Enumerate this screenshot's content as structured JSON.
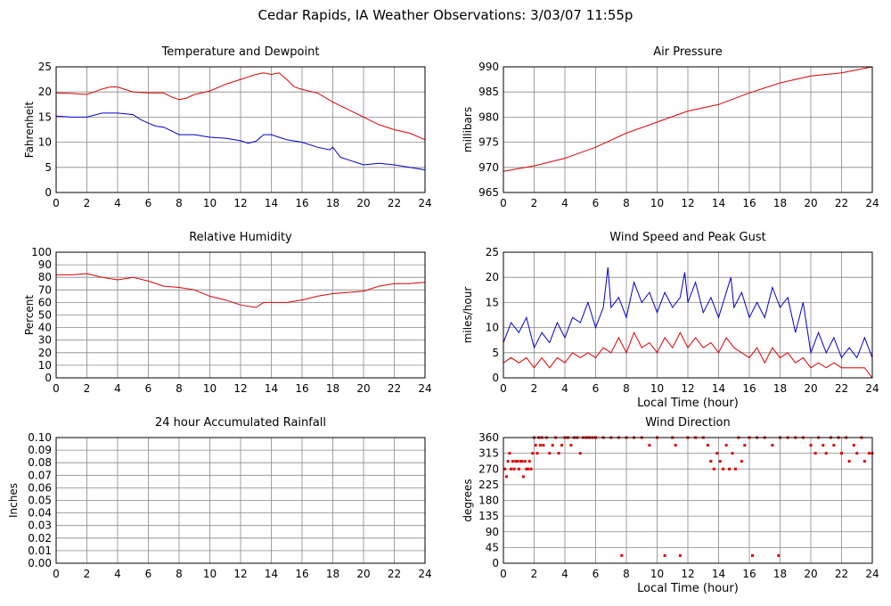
{
  "page": {
    "title": "Cedar Rapids, IA Weather Observations: 3/03/07 11:55p",
    "colors": {
      "red": "#dd0000",
      "blue": "#0000cc",
      "grid": "#888888"
    }
  },
  "chart_data": [
    {
      "id": "temp",
      "type": "line",
      "title": "Temperature and Dewpoint",
      "xlabel": "",
      "ylabel": "Fahrenheit",
      "xlim": [
        0,
        24
      ],
      "ylim": [
        0,
        25
      ],
      "xticks": [
        0,
        2,
        4,
        6,
        8,
        10,
        12,
        14,
        16,
        18,
        20,
        22,
        24
      ],
      "yticks": [
        0,
        5,
        10,
        15,
        20,
        25
      ],
      "grid": true,
      "series": [
        {
          "color": "#dd0000",
          "x": [
            0,
            1,
            2,
            3,
            3.5,
            4,
            5,
            6,
            7,
            7.5,
            8,
            8.5,
            9,
            10,
            11,
            12,
            12.5,
            13,
            13.5,
            14,
            14.5,
            15,
            15.5,
            16,
            17,
            18,
            19,
            20,
            21,
            22,
            23,
            24
          ],
          "y": [
            19.8,
            19.7,
            19.5,
            20.6,
            21.0,
            21.0,
            20.0,
            19.8,
            19.8,
            19.0,
            18.5,
            18.8,
            19.5,
            20.2,
            21.5,
            22.5,
            23.0,
            23.5,
            23.8,
            23.5,
            23.8,
            22.5,
            21.0,
            20.5,
            19.8,
            18.0,
            16.5,
            15.0,
            13.5,
            12.5,
            11.8,
            10.5
          ]
        },
        {
          "color": "#0000cc",
          "x": [
            0,
            1,
            2,
            3,
            4,
            5,
            5.5,
            6,
            6.5,
            7,
            8,
            9,
            10,
            11,
            12,
            12.5,
            13,
            13.5,
            14,
            14.5,
            15,
            16,
            17,
            17.8,
            18,
            18.5,
            19,
            20,
            21,
            22,
            23,
            24
          ],
          "y": [
            15.2,
            15.0,
            15.0,
            15.8,
            15.8,
            15.5,
            14.5,
            13.8,
            13.2,
            13.0,
            11.5,
            11.5,
            11.0,
            10.8,
            10.3,
            9.8,
            10.2,
            11.5,
            11.5,
            11.0,
            10.5,
            10.0,
            9.0,
            8.5,
            9.0,
            7.0,
            6.5,
            5.5,
            5.8,
            5.5,
            5.0,
            4.5
          ]
        }
      ]
    },
    {
      "id": "pressure",
      "type": "line",
      "title": "Air Pressure",
      "xlabel": "",
      "ylabel": "millibars",
      "xlim": [
        0,
        24
      ],
      "ylim": [
        965,
        990
      ],
      "xticks": [
        0,
        2,
        4,
        6,
        8,
        10,
        12,
        14,
        16,
        18,
        20,
        22,
        24
      ],
      "yticks": [
        965,
        970,
        975,
        980,
        985,
        990
      ],
      "grid": true,
      "series": [
        {
          "color": "#dd0000",
          "x": [
            0,
            2,
            4,
            6,
            8,
            10,
            12,
            14,
            16,
            18,
            20,
            22,
            24
          ],
          "y": [
            969.2,
            970.3,
            971.8,
            974.0,
            976.8,
            979.0,
            981.2,
            982.5,
            984.8,
            986.8,
            988.2,
            988.8,
            990.0
          ]
        }
      ]
    },
    {
      "id": "rh",
      "type": "line",
      "title": "Relative Humidity",
      "xlabel": "",
      "ylabel": "Percent",
      "xlim": [
        0,
        24
      ],
      "ylim": [
        0,
        100
      ],
      "xticks": [
        0,
        2,
        4,
        6,
        8,
        10,
        12,
        14,
        16,
        18,
        20,
        22,
        24
      ],
      "yticks": [
        0,
        10,
        20,
        30,
        40,
        50,
        60,
        70,
        80,
        90,
        100
      ],
      "grid": true,
      "series": [
        {
          "color": "#dd0000",
          "x": [
            0,
            1,
            2,
            3,
            4,
            5,
            6,
            7,
            8,
            9,
            10,
            11,
            12,
            13,
            13.5,
            14,
            15,
            16,
            17,
            18,
            19,
            20,
            21,
            22,
            23,
            24
          ],
          "y": [
            82,
            82,
            83,
            80,
            78,
            80,
            77,
            73,
            72,
            70,
            65,
            62,
            58,
            56,
            60,
            60,
            60,
            62,
            65,
            67,
            68,
            69,
            73,
            75,
            75,
            76
          ]
        }
      ]
    },
    {
      "id": "wind",
      "type": "line",
      "title": "Wind Speed and Peak Gust",
      "xlabel": "Local Time (hour)",
      "ylabel": "miles/hour",
      "xlim": [
        0,
        24
      ],
      "ylim": [
        0,
        25
      ],
      "xticks": [
        0,
        2,
        4,
        6,
        8,
        10,
        12,
        14,
        16,
        18,
        20,
        22,
        24
      ],
      "yticks": [
        0,
        5,
        10,
        15,
        20,
        25
      ],
      "grid": true,
      "series": [
        {
          "color": "#0000cc",
          "x": [
            0,
            0.5,
            1,
            1.5,
            2,
            2.5,
            3,
            3.5,
            4,
            4.5,
            5,
            5.5,
            6,
            6.5,
            6.8,
            7,
            7.5,
            8,
            8.5,
            9,
            9.5,
            10,
            10.5,
            11,
            11.5,
            11.8,
            12,
            12.5,
            13,
            13.5,
            14,
            14.5,
            14.8,
            15,
            15.5,
            16,
            16.5,
            17,
            17.5,
            18,
            18.5,
            19,
            19.5,
            20,
            20.5,
            21,
            21.5,
            22,
            22.5,
            23,
            23.5,
            24
          ],
          "y": [
            7,
            11,
            9,
            12,
            6,
            9,
            7,
            11,
            8,
            12,
            11,
            15,
            10,
            14,
            22,
            14,
            16,
            12,
            19,
            15,
            17,
            13,
            17,
            14,
            16,
            21,
            15,
            19,
            13,
            16,
            12,
            17,
            20,
            14,
            17,
            12,
            15,
            12,
            18,
            14,
            16,
            9,
            15,
            5,
            9,
            5,
            8,
            4,
            6,
            4,
            8,
            4
          ]
        },
        {
          "color": "#dd0000",
          "x": [
            0,
            0.5,
            1,
            1.5,
            2,
            2.5,
            3,
            3.5,
            4,
            4.5,
            5,
            5.5,
            6,
            6.5,
            7,
            7.5,
            8,
            8.5,
            9,
            9.5,
            10,
            10.5,
            11,
            11.5,
            12,
            12.5,
            13,
            13.5,
            14,
            14.5,
            15,
            15.5,
            16,
            16.5,
            17,
            17.5,
            18,
            18.5,
            19,
            19.5,
            20,
            20.5,
            21,
            21.5,
            22,
            22.5,
            23,
            23.5,
            24
          ],
          "y": [
            3,
            4,
            3,
            4,
            2,
            4,
            2,
            4,
            3,
            5,
            4,
            5,
            4,
            6,
            5,
            8,
            5,
            9,
            6,
            7,
            5,
            8,
            6,
            9,
            6,
            8,
            6,
            7,
            5,
            8,
            6,
            5,
            4,
            6,
            3,
            6,
            4,
            5,
            3,
            4,
            2,
            3,
            2,
            3,
            2,
            2,
            2,
            2,
            0
          ]
        }
      ]
    },
    {
      "id": "rain",
      "type": "line",
      "title": "24 hour Accumulated Rainfall",
      "xlabel": "",
      "ylabel": "Inches",
      "xlim": [
        0,
        24
      ],
      "ylim": [
        0,
        0.1
      ],
      "xticks": [
        0,
        2,
        4,
        6,
        8,
        10,
        12,
        14,
        16,
        18,
        20,
        22,
        24
      ],
      "yticks": [
        "0.00",
        "0.01",
        "0.02",
        "0.03",
        "0.04",
        "0.05",
        "0.06",
        "0.07",
        "0.08",
        "0.09",
        "0.10"
      ],
      "grid": true,
      "series": [
        {
          "color": "#dd0000",
          "x": [
            0,
            24
          ],
          "y": [
            0,
            0
          ]
        }
      ]
    },
    {
      "id": "winddir",
      "type": "scatter",
      "title": "Wind Direction",
      "xlabel": "Local Time (hour)",
      "ylabel": "degrees",
      "xlim": [
        0,
        24
      ],
      "ylim": [
        0,
        360
      ],
      "xticks": [
        0,
        2,
        4,
        6,
        8,
        10,
        12,
        14,
        16,
        18,
        20,
        22,
        24
      ],
      "yticks": [
        0,
        45,
        90,
        135,
        180,
        225,
        270,
        315,
        360
      ],
      "grid": true,
      "series": [
        {
          "color": "#dd0000",
          "x": [
            0.1,
            0.2,
            0.3,
            0.4,
            0.5,
            0.6,
            0.7,
            0.8,
            0.9,
            1.0,
            1.1,
            1.2,
            1.3,
            1.4,
            1.5,
            1.6,
            1.7,
            1.8,
            1.9,
            2.0,
            2.1,
            2.2,
            2.3,
            2.4,
            2.5,
            2.6,
            2.8,
            3.0,
            3.2,
            3.4,
            3.6,
            3.8,
            4.0,
            4.2,
            4.4,
            4.6,
            4.8,
            5.0,
            5.2,
            5.4,
            5.6,
            5.8,
            6.0,
            6.5,
            7.0,
            7.5,
            7.7,
            8.0,
            8.5,
            9.0,
            9.5,
            10.0,
            10.5,
            11.0,
            11.2,
            11.5,
            12.0,
            12.5,
            13.0,
            13.3,
            13.5,
            13.7,
            13.9,
            14.1,
            14.3,
            14.5,
            14.7,
            14.9,
            15.1,
            15.3,
            15.5,
            15.7,
            16.0,
            16.2,
            16.5,
            17.0,
            17.5,
            17.9,
            18.0,
            18.5,
            19.0,
            19.5,
            20.0,
            20.3,
            20.5,
            20.8,
            21.0,
            21.3,
            21.5,
            21.8,
            22.0,
            22.3,
            22.5,
            22.8,
            23.0,
            23.3,
            23.5,
            23.8,
            24.0
          ],
          "y": [
            270,
            248,
            292,
            315,
            270,
            292,
            270,
            292,
            292,
            270,
            292,
            292,
            248,
            292,
            270,
            270,
            292,
            270,
            315,
            360,
            338,
            315,
            360,
            338,
            360,
            338,
            360,
            315,
            338,
            360,
            315,
            338,
            360,
            360,
            338,
            360,
            360,
            315,
            360,
            360,
            360,
            360,
            360,
            360,
            360,
            360,
            22,
            360,
            360,
            360,
            338,
            360,
            22,
            360,
            338,
            22,
            360,
            360,
            360,
            338,
            292,
            270,
            315,
            292,
            270,
            338,
            270,
            315,
            270,
            360,
            292,
            338,
            360,
            22,
            360,
            360,
            338,
            22,
            360,
            360,
            360,
            360,
            338,
            315,
            360,
            338,
            315,
            360,
            338,
            360,
            315,
            360,
            292,
            338,
            315,
            360,
            292,
            315,
            315
          ]
        }
      ]
    }
  ]
}
